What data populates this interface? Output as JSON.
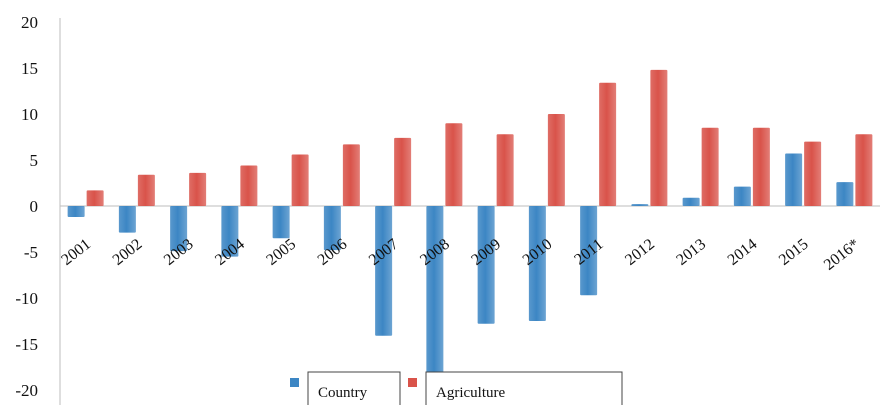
{
  "chart_data": {
    "type": "bar",
    "categories": [
      "2001",
      "2002",
      "2003",
      "2004",
      "2005",
      "2006",
      "2007",
      "2008",
      "2009",
      "2010",
      "2011",
      "2012",
      "2013",
      "2014",
      "2015",
      "2016*"
    ],
    "series": [
      {
        "name": "Country",
        "color": "#3c86c4",
        "values": [
          -1.2,
          -2.9,
          -4.9,
          -5.5,
          -3.5,
          -4.8,
          -14.1,
          -18.9,
          -12.8,
          -12.5,
          -9.7,
          0.2,
          0.9,
          2.1,
          5.7,
          2.6
        ]
      },
      {
        "name": "Agriculture",
        "color": "#d9534a",
        "values": [
          1.7,
          3.4,
          3.6,
          4.4,
          5.6,
          6.7,
          7.4,
          9.0,
          7.8,
          10.0,
          13.4,
          14.8,
          8.5,
          8.5,
          7.0,
          7.8
        ]
      }
    ],
    "yticks": [
      20,
      15,
      10,
      5,
      0,
      -5,
      -10,
      -15,
      -20
    ],
    "ylim": [
      -20,
      20
    ],
    "title": "",
    "xlabel": "",
    "ylabel": "",
    "legend": {
      "position": "bottom-center",
      "items": [
        "Country",
        "Agriculture"
      ]
    }
  }
}
